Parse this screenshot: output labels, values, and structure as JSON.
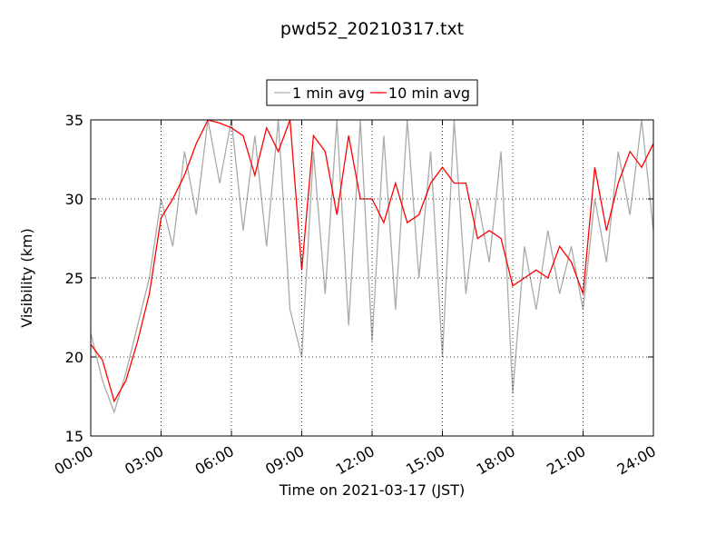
{
  "chart_data": {
    "type": "line",
    "title": "pwd52_20210317.txt",
    "xlabel": "Time on 2021-03-17 (JST)",
    "ylabel": "Visibility (km)",
    "xlim": [
      0,
      24
    ],
    "ylim": [
      15,
      35
    ],
    "xticks": [
      {
        "value": 0,
        "label": "00:00"
      },
      {
        "value": 3,
        "label": "03:00"
      },
      {
        "value": 6,
        "label": "06:00"
      },
      {
        "value": 9,
        "label": "09:00"
      },
      {
        "value": 12,
        "label": "12:00"
      },
      {
        "value": 15,
        "label": "15:00"
      },
      {
        "value": 18,
        "label": "18:00"
      },
      {
        "value": 21,
        "label": "21:00"
      },
      {
        "value": 24,
        "label": "24:00"
      }
    ],
    "yticks": [
      15,
      20,
      25,
      30,
      35
    ],
    "grid": true,
    "legend": "upper center",
    "x": [
      0,
      0.5,
      1,
      1.5,
      2,
      2.5,
      3,
      3.5,
      4,
      4.5,
      5,
      5.5,
      6,
      6.5,
      7,
      7.5,
      8,
      8.5,
      9,
      9.5,
      10,
      10.5,
      11,
      11.5,
      12,
      12.5,
      13,
      13.5,
      14,
      14.5,
      15,
      15.5,
      16,
      16.5,
      17,
      17.5,
      18,
      18.5,
      19,
      19.5,
      20,
      20.5,
      21,
      21.5,
      22,
      22.5,
      23,
      23.5,
      24
    ],
    "series": [
      {
        "name": "1 min avg",
        "color": "#aaaaaa",
        "values": [
          21.5,
          18.5,
          16.5,
          19,
          22,
          25,
          30,
          27,
          33,
          29,
          35,
          31,
          35,
          28,
          34,
          27,
          35,
          23,
          20,
          33,
          24,
          35,
          22,
          35,
          21,
          34,
          23,
          35,
          25,
          33,
          20,
          35,
          24,
          30,
          26,
          33,
          17.7,
          27,
          23,
          28,
          24,
          27,
          23,
          30,
          26,
          33,
          29,
          35,
          28
        ]
      },
      {
        "name": "10 min avg",
        "color": "#ff0000",
        "values": [
          20.8,
          19.8,
          17.2,
          18.5,
          21,
          24,
          28.8,
          30,
          31.5,
          33.5,
          35,
          34.8,
          34.5,
          34,
          31.5,
          34.5,
          33,
          35,
          25.5,
          34,
          33,
          29,
          34,
          30,
          30,
          28.5,
          31,
          28.5,
          29,
          31,
          32,
          31,
          31,
          27.5,
          28,
          27.5,
          24.5,
          25,
          25.5,
          25,
          27,
          26,
          24,
          32,
          28,
          31,
          33,
          32,
          33.5
        ]
      }
    ]
  }
}
